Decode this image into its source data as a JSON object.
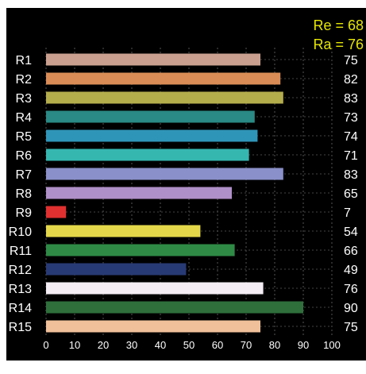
{
  "chart_data": {
    "type": "bar",
    "orientation": "horizontal",
    "title": "",
    "xlabel": "",
    "ylabel": "",
    "xlim": [
      0,
      100
    ],
    "x_ticks": [
      0,
      10,
      20,
      30,
      40,
      50,
      60,
      70,
      80,
      90,
      100
    ],
    "grid": true,
    "annotations": [
      {
        "text": "Re = 68",
        "color": "#e6e600"
      },
      {
        "text": "Ra = 76",
        "color": "#e6e600"
      }
    ],
    "categories": [
      "R1",
      "R2",
      "R3",
      "R4",
      "R5",
      "R6",
      "R7",
      "R8",
      "R9",
      "R10",
      "R11",
      "R12",
      "R13",
      "R14",
      "R15"
    ],
    "values": [
      75,
      82,
      83,
      73,
      74,
      71,
      83,
      65,
      7,
      54,
      66,
      49,
      76,
      90,
      75
    ],
    "colors": [
      "#c9a08f",
      "#d98c55",
      "#b3ad4c",
      "#2a8a85",
      "#2f95b8",
      "#35b7b0",
      "#8a90c9",
      "#b090c8",
      "#e03030",
      "#e4d84a",
      "#2e8a45",
      "#283a75",
      "#f4eef4",
      "#2f6f3c",
      "#f0c09a"
    ],
    "background": "#000000",
    "text_color": "#ffffff"
  }
}
